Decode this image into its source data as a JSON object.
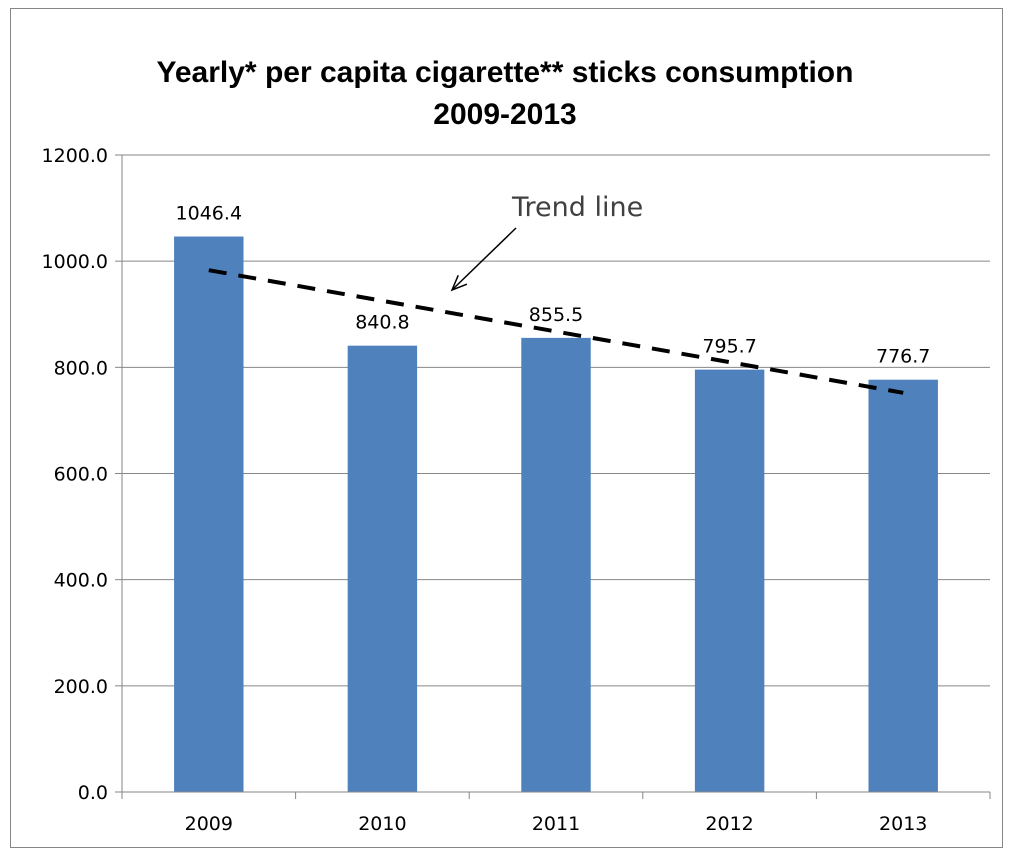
{
  "chart_data": {
    "type": "bar",
    "title_line1": "Yearly* per capita cigarette** sticks consumption",
    "title_line2": "2009-2013",
    "categories": [
      "2009",
      "2010",
      "2011",
      "2012",
      "2013"
    ],
    "values": [
      1046.4,
      840.8,
      855.5,
      795.7,
      776.7
    ],
    "value_labels": [
      "1046.4",
      "840.8",
      "855.5",
      "795.7",
      "776.7"
    ],
    "ylim": [
      0,
      1200
    ],
    "yticks": [
      0,
      200,
      400,
      600,
      800,
      1000,
      1200
    ],
    "ytick_labels": [
      "0.0",
      "200.0",
      "400.0",
      "600.0",
      "800.0",
      "1000.0",
      "1200.0"
    ],
    "grid": true,
    "legend": "none",
    "bar_color": "#4F81BD",
    "trend_line": {
      "label": "Trend line",
      "style": "dashed",
      "color": "#000000",
      "start_value": 983,
      "end_value": 752
    }
  }
}
